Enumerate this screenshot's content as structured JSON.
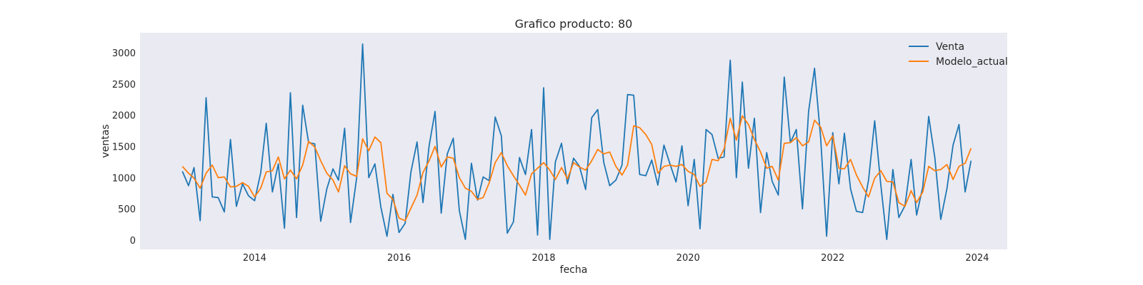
{
  "chart_data": {
    "type": "line",
    "title": "Grafico producto: 80",
    "xlabel": "fecha",
    "ylabel": "ventas",
    "x_axis_type": "date",
    "xlim": [
      "2012-06-01",
      "2024-06-01"
    ],
    "ylim": [
      -150,
      3320
    ],
    "x_ticks": [
      "2014",
      "2016",
      "2018",
      "2020",
      "2022",
      "2024"
    ],
    "y_ticks": [
      "0",
      "500",
      "1000",
      "1500",
      "2000",
      "2500",
      "3000"
    ],
    "grid": false,
    "legend": "top-right",
    "colors": {
      "background": "#eaeaf2",
      "venta": "#1f77b4",
      "modelo": "#ff7f0e"
    },
    "x": [
      "2013-01",
      "2013-02",
      "2013-03",
      "2013-04",
      "2013-05",
      "2013-06",
      "2013-07",
      "2013-08",
      "2013-09",
      "2013-10",
      "2013-11",
      "2013-12",
      "2014-01",
      "2014-02",
      "2014-03",
      "2014-04",
      "2014-05",
      "2014-06",
      "2014-07",
      "2014-08",
      "2014-09",
      "2014-10",
      "2014-11",
      "2014-12",
      "2015-01",
      "2015-02",
      "2015-03",
      "2015-04",
      "2015-05",
      "2015-06",
      "2015-07",
      "2015-08",
      "2015-09",
      "2015-10",
      "2015-11",
      "2015-12",
      "2016-01",
      "2016-02",
      "2016-03",
      "2016-04",
      "2016-05",
      "2016-06",
      "2016-07",
      "2016-08",
      "2016-09",
      "2016-10",
      "2016-11",
      "2016-12",
      "2017-01",
      "2017-02",
      "2017-03",
      "2017-04",
      "2017-05",
      "2017-06",
      "2017-07",
      "2017-08",
      "2017-09",
      "2017-10",
      "2017-11",
      "2017-12",
      "2018-01",
      "2018-02",
      "2018-03",
      "2018-04",
      "2018-05",
      "2018-06",
      "2018-07",
      "2018-08",
      "2018-09",
      "2018-10",
      "2018-11",
      "2018-12",
      "2019-01",
      "2019-02",
      "2019-03",
      "2019-04",
      "2019-05",
      "2019-06",
      "2019-07",
      "2019-08",
      "2019-09",
      "2019-10",
      "2019-11",
      "2019-12",
      "2020-01",
      "2020-02",
      "2020-03",
      "2020-04",
      "2020-05",
      "2020-06",
      "2020-07",
      "2020-08",
      "2020-09",
      "2020-10",
      "2020-11",
      "2020-12",
      "2021-01",
      "2021-02",
      "2021-03",
      "2021-04",
      "2021-05",
      "2021-06",
      "2021-07",
      "2021-08",
      "2021-09",
      "2021-10",
      "2021-11",
      "2021-12",
      "2022-01",
      "2022-02",
      "2022-03",
      "2022-04",
      "2022-05",
      "2022-06",
      "2022-07",
      "2022-08",
      "2022-09",
      "2022-10",
      "2022-11",
      "2022-12",
      "2023-01",
      "2023-02",
      "2023-03",
      "2023-04",
      "2023-05",
      "2023-06",
      "2023-07",
      "2023-08",
      "2023-09",
      "2023-10",
      "2023-11",
      "2023-12"
    ],
    "series": [
      {
        "name": "Venta",
        "values": [
          1100,
          870,
          1160,
          310,
          2280,
          690,
          680,
          450,
          1610,
          540,
          900,
          710,
          630,
          1080,
          1870,
          770,
          1220,
          190,
          2360,
          360,
          2160,
          1560,
          1540,
          300,
          820,
          1140,
          960,
          1790,
          280,
          1000,
          3140,
          1000,
          1220,
          530,
          60,
          730,
          120,
          270,
          1090,
          1570,
          600,
          1510,
          2060,
          430,
          1380,
          1630,
          470,
          10,
          1230,
          640,
          1010,
          950,
          1970,
          1670,
          110,
          290,
          1320,
          1050,
          1770,
          80,
          2440,
          10,
          1250,
          1550,
          900,
          1310,
          1180,
          810,
          1960,
          2090,
          1240,
          870,
          960,
          1200,
          2330,
          2320,
          1050,
          1030,
          1280,
          880,
          1520,
          1220,
          930,
          1510,
          550,
          1290,
          180,
          1770,
          1690,
          1310,
          1330,
          2880,
          1000,
          2530,
          1150,
          1950,
          440,
          1400,
          940,
          720,
          2610,
          1560,
          1770,
          500,
          2060,
          2750,
          1630,
          60,
          1720,
          900,
          1710,
          820,
          460,
          440,
          960,
          1910,
          880,
          10,
          1130,
          360,
          550,
          1290,
          400,
          850,
          1980,
          1320,
          330,
          820,
          1520,
          1850,
          770,
          1270
        ]
      },
      {
        "name": "Modelo_actual",
        "values": [
          1180,
          1070,
          990,
          830,
          1070,
          1200,
          1000,
          1010,
          850,
          860,
          920,
          860,
          690,
          830,
          1090,
          1110,
          1330,
          980,
          1120,
          980,
          1200,
          1580,
          1490,
          1270,
          1070,
          960,
          770,
          1190,
          1060,
          1020,
          1620,
          1430,
          1650,
          1560,
          750,
          650,
          350,
          310,
          510,
          720,
          1080,
          1270,
          1500,
          1170,
          1330,
          1310,
          1000,
          830,
          780,
          650,
          680,
          920,
          1240,
          1400,
          1190,
          1030,
          880,
          720,
          1060,
          1150,
          1240,
          1120,
          970,
          1160,
          980,
          1240,
          1170,
          1120,
          1270,
          1450,
          1380,
          1410,
          1180,
          1040,
          1200,
          1830,
          1800,
          1690,
          1530,
          1070,
          1180,
          1200,
          1180,
          1210,
          1100,
          1050,
          860,
          930,
          1290,
          1270,
          1460,
          1950,
          1600,
          1990,
          1850,
          1610,
          1410,
          1150,
          1180,
          960,
          1550,
          1560,
          1640,
          1510,
          1570,
          1920,
          1810,
          1510,
          1670,
          1150,
          1140,
          1290,
          1040,
          850,
          690,
          990,
          1110,
          940,
          930,
          600,
          540,
          790,
          600,
          770,
          1180,
          1110,
          1130,
          1210,
          970,
          1180,
          1230,
          1470
        ]
      }
    ]
  }
}
